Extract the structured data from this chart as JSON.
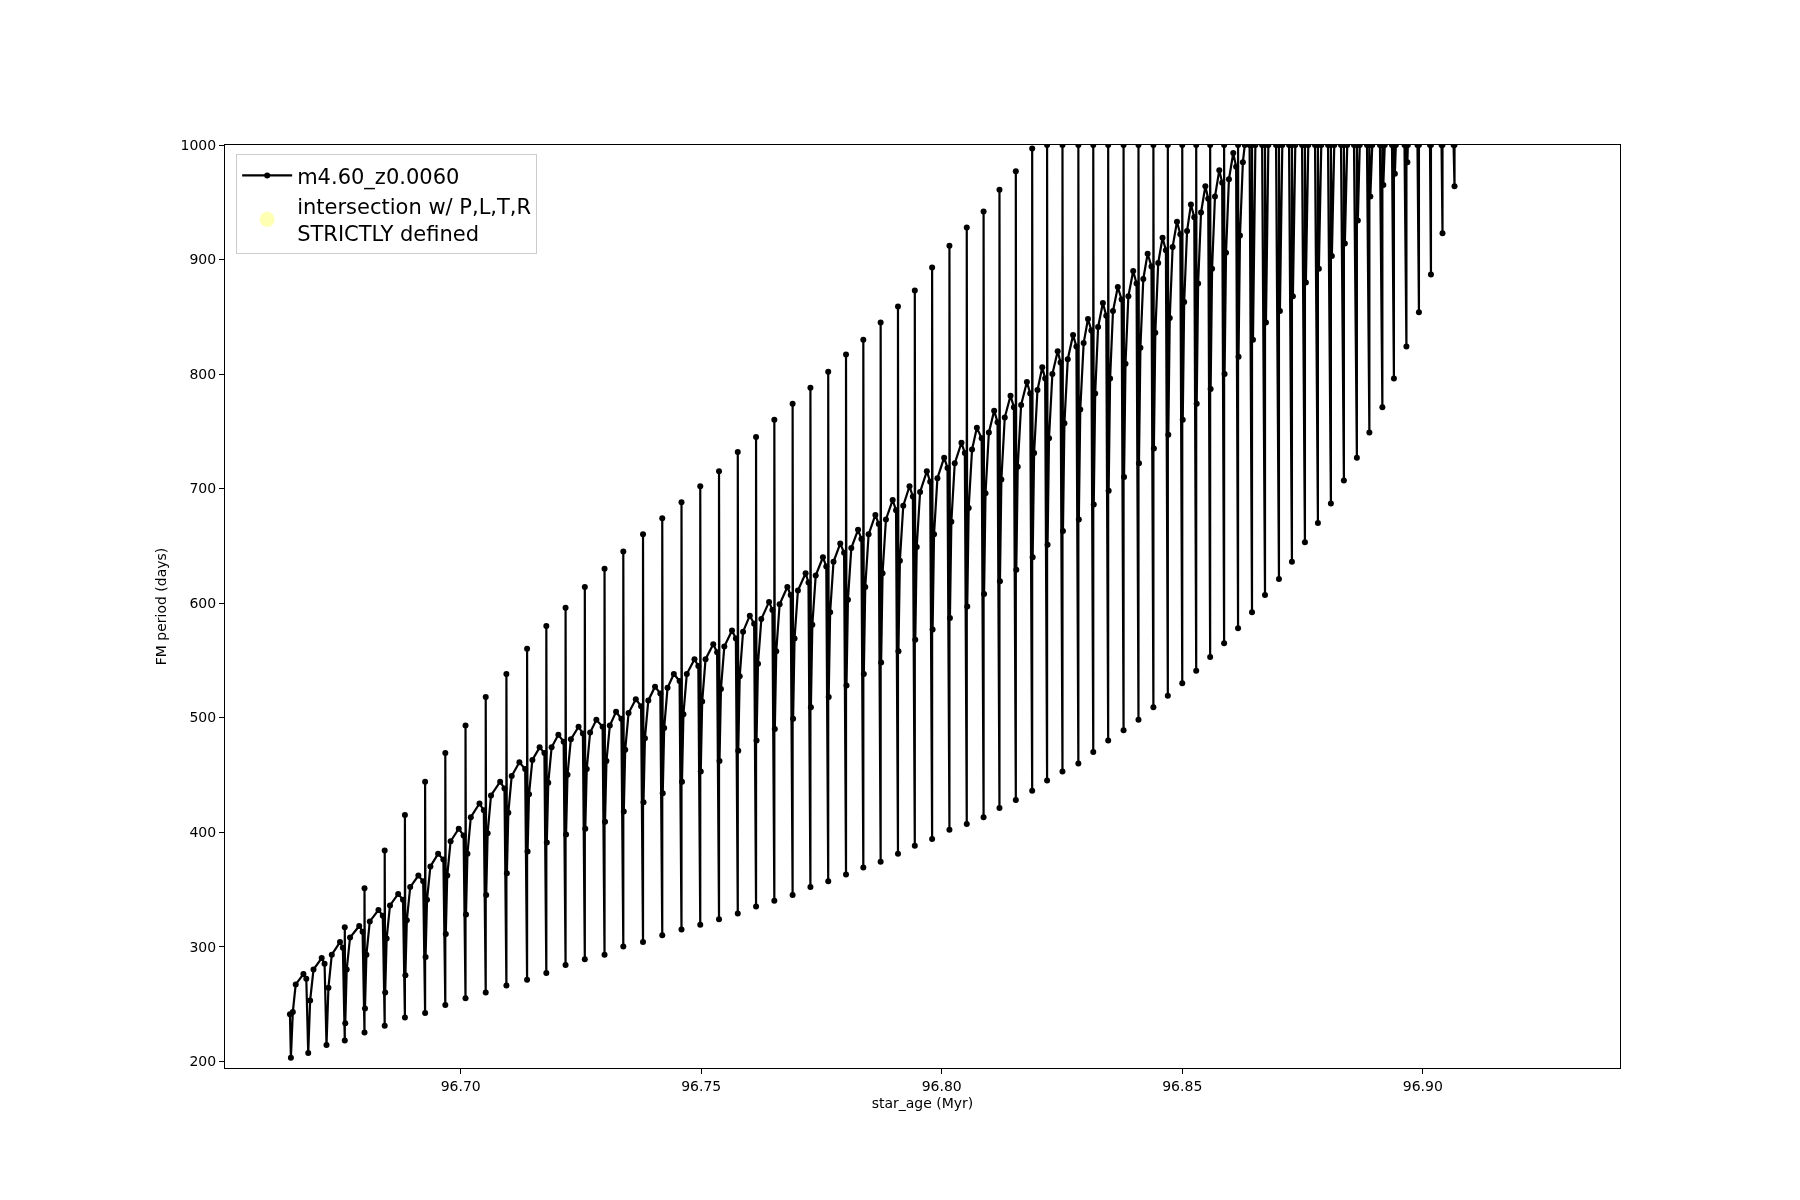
{
  "chart_data": {
    "type": "line",
    "xlabel": "star_age (Myr)",
    "ylabel": "FM period (days)",
    "xlim": [
      96.651,
      96.941
    ],
    "ylim": [
      194,
      1000
    ],
    "xticks": [
      {
        "value": 96.7,
        "label": "96.70"
      },
      {
        "value": 96.75,
        "label": "96.75"
      },
      {
        "value": 96.8,
        "label": "96.80"
      },
      {
        "value": 96.85,
        "label": "96.85"
      },
      {
        "value": 96.9,
        "label": "96.90"
      }
    ],
    "yticks": [
      200,
      300,
      400,
      500,
      600,
      700,
      800,
      900,
      1000
    ],
    "grid": false,
    "legend": "top left",
    "marker": "circle",
    "line_style": "solid",
    "series": [
      {
        "name": "m4.60_z0.0060",
        "color": "#000000",
        "x": [
          96.6645,
          96.6647,
          96.6651,
          96.6657,
          96.6673,
          96.6679,
          96.6683,
          96.6687,
          96.6694,
          96.6711,
          96.6717,
          96.6721,
          96.6725,
          96.6732,
          96.6749,
          96.6755,
          96.6759,
          96.6759,
          96.676,
          96.6763,
          96.677,
          96.6789,
          96.6796,
          96.68,
          96.68,
          96.6801,
          96.6804,
          96.6811,
          96.6829,
          96.6838,
          96.6842,
          96.6842,
          96.6843,
          96.6846,
          96.6853,
          96.687,
          96.688,
          96.6884,
          96.6884,
          96.6885,
          96.6888,
          96.6895,
          96.6912,
          96.6922,
          96.6926,
          96.6926,
          96.6927,
          96.693,
          96.6937,
          96.6953,
          96.6964,
          96.6968,
          96.6968,
          96.6969,
          96.6972,
          96.6979,
          96.6996,
          96.7006,
          96.701,
          96.701,
          96.7011,
          96.7014,
          96.7021,
          96.7039,
          96.7048,
          96.7052,
          96.7052,
          96.7053,
          96.7056,
          96.7063,
          96.7082,
          96.7091,
          96.7095,
          96.7095,
          96.7096,
          96.7099,
          96.7106,
          96.7122,
          96.7134,
          96.7138,
          96.7138,
          96.7139,
          96.7142,
          96.7149,
          96.7164,
          96.7174,
          96.7178,
          96.7178,
          96.7179,
          96.7182,
          96.7189,
          96.7203,
          96.7214,
          96.7218,
          96.7218,
          96.7219,
          96.7222,
          96.7229,
          96.7245,
          96.7254,
          96.7258,
          96.7258,
          96.7259,
          96.7262,
          96.7269,
          96.7282,
          96.7295,
          96.7299,
          96.7299,
          96.73,
          96.7303,
          96.731,
          96.7323,
          96.7334,
          96.7338,
          96.7338,
          96.7339,
          96.7342,
          96.7349,
          96.7364,
          96.7375,
          96.7379,
          96.7379,
          96.738,
          96.7383,
          96.739,
          96.7404,
          96.7415,
          96.7419,
          96.7419,
          96.742,
          96.7423,
          96.743,
          96.7443,
          96.7455,
          96.7459,
          96.7459,
          96.746,
          96.7463,
          96.747,
          96.7486,
          96.7494,
          96.7498,
          96.7498,
          96.7499,
          96.7502,
          96.7509,
          96.7525,
          96.7533,
          96.7537,
          96.7537,
          96.7538,
          96.7541,
          96.7548,
          96.7564,
          96.7572,
          96.7576,
          96.7576,
          96.7577,
          96.758,
          96.7587,
          96.7601,
          96.761,
          96.7614,
          96.7614,
          96.7615,
          96.7618,
          96.7625,
          96.7641,
          96.7648,
          96.7652,
          96.7652,
          96.7653,
          96.7656,
          96.7663,
          96.7679,
          96.7686,
          96.769,
          96.769,
          96.7691,
          96.7694,
          96.7701,
          96.7717,
          96.7723,
          96.7727,
          96.7727,
          96.7728,
          96.7731,
          96.7738,
          96.7753,
          96.776,
          96.7764,
          96.7764,
          96.7765,
          96.7768,
          96.7775,
          96.7789,
          96.7797,
          96.7801,
          96.7801,
          96.7802,
          96.7805,
          96.7812,
          96.7826,
          96.7833,
          96.7837,
          96.7837,
          96.7838,
          96.7841,
          96.7848,
          96.7862,
          96.7869,
          96.7873,
          96.7873,
          96.7874,
          96.7877,
          96.7884,
          96.7898,
          96.7905,
          96.7909,
          96.7909,
          96.791,
          96.7913,
          96.792,
          96.7933,
          96.794,
          96.7944,
          96.7944,
          96.7945,
          96.7948,
          96.7955,
          96.7969,
          96.7976,
          96.798,
          96.798,
          96.7981,
          96.7984,
          96.7991,
          96.8005,
          96.8012,
          96.8016,
          96.8016,
          96.8017,
          96.802,
          96.8027,
          96.8041,
          96.8048,
          96.8052,
          96.8052,
          96.8053,
          96.8056,
          96.8063,
          96.8073,
          96.8083,
          96.8087,
          96.8087,
          96.8088,
          96.8091,
          96.8098,
          96.8109,
          96.8116,
          96.812,
          96.812,
          96.8121,
          96.8124,
          96.8131,
          96.8143,
          96.815,
          96.8154,
          96.8154,
          96.8155,
          96.8158,
          96.8165,
          96.8177,
          96.8184,
          96.8188,
          96.8188,
          96.8189,
          96.8192,
          96.8199,
          96.8209,
          96.8215,
          96.8219,
          96.8219,
          96.822,
          96.8223,
          96.823,
          96.8241,
          96.8247,
          96.8251,
          96.8251,
          96.8252,
          96.8255,
          96.8262,
          96.8273,
          96.828,
          96.8284,
          96.8284,
          96.8285,
          96.8288,
          96.8295,
          96.8304,
          96.8311,
          96.8315,
          96.8315,
          96.8316,
          96.8319,
          96.8325,
          96.8335,
          96.8342,
          96.8346,
          96.8346,
          96.8347,
          96.835,
          96.8356,
          96.8366,
          96.8374,
          96.8378,
          96.8378,
          96.8379,
          96.8382,
          96.8388,
          96.8398,
          96.8405,
          96.8409,
          96.8409,
          96.841,
          96.8413,
          96.8419,
          96.8428,
          96.8436,
          96.844,
          96.844,
          96.8441,
          96.8444,
          96.845,
          96.8459,
          96.8466,
          96.847,
          96.847,
          96.8471,
          96.8474,
          96.848,
          96.8489,
          96.8496,
          96.85,
          96.85,
          96.8501,
          96.8504,
          96.851,
          96.8518,
          96.8525,
          96.8529,
          96.8529,
          96.853,
          96.8533,
          96.8539,
          96.8548,
          96.8554,
          96.8558,
          96.8558,
          96.8559,
          96.8562,
          96.8568,
          96.8577,
          96.8583,
          96.8587,
          96.8587,
          96.8588,
          96.8591,
          96.8597,
          96.8606,
          96.8612,
          96.8616,
          96.8616,
          96.8617,
          96.862,
          96.8626,
          96.863,
          null,
          96.864,
          96.8645,
          96.8645,
          96.8647,
          96.8652,
          null,
          96.8666,
          96.8672,
          96.8672,
          96.8674,
          96.8679,
          null,
          96.8695,
          96.8701,
          96.8701,
          96.8703,
          96.8708,
          null,
          96.8722,
          96.8728,
          96.8728,
          96.873,
          96.8735,
          null,
          96.8749,
          96.8755,
          96.8755,
          96.8757,
          96.8762,
          null,
          96.8776,
          96.8782,
          96.8782,
          96.8784,
          96.8789,
          null,
          96.8803,
          96.8809,
          96.8809,
          96.8811,
          96.8816,
          null,
          96.883,
          96.8836,
          96.8836,
          96.8838,
          96.8843,
          null,
          96.8857,
          96.8863,
          96.8863,
          96.8865,
          96.8869,
          null,
          96.8884,
          96.8889,
          96.8889,
          96.8891,
          96.8895,
          null,
          96.8911,
          96.8916,
          96.8916,
          96.8918,
          96.8921,
          null,
          96.8936,
          96.894,
          96.894,
          96.8942,
          96.8944,
          null,
          96.8962,
          96.8966,
          96.8966,
          96.8968,
          96.8969,
          null,
          96.8989,
          96.8992,
          96.8992,
          null,
          96.9015,
          96.9017,
          96.9017,
          null,
          96.9039,
          96.9041,
          96.9041,
          null,
          96.9064,
          96.9066,
          96.9066
        ],
        "values": [
          241,
          203,
          243,
          267,
          276,
          272,
          207,
          253,
          280,
          290,
          285,
          214,
          264,
          293,
          304,
          299,
          218,
          317,
          233,
          280,
          308,
          318,
          313,
          225,
          351,
          246,
          293,
          322,
          332,
          327,
          231,
          384,
          260,
          307,
          336,
          346,
          341,
          238,
          415,
          275,
          323,
          352,
          362,
          357,
          242,
          444,
          291,
          341,
          370,
          381,
          376,
          249,
          469,
          311,
          362,
          392,
          403,
          397,
          255,
          493,
          328,
          381,
          413,
          425,
          419,
          260,
          518,
          345,
          399,
          432,
          444,
          438,
          266,
          538,
          364,
          417,
          449,
          461,
          455,
          271,
          560,
          383,
          433,
          463,
          474,
          469,
          277,
          580,
          391,
          443,
          474,
          485,
          479,
          284,
          596,
          398,
          450,
          481,
          492,
          486,
          289,
          614,
          403,
          455,
          487,
          498,
          492,
          293,
          630,
          409,
          462,
          493,
          505,
          499,
          300,
          645,
          418,
          472,
          504,
          516,
          510,
          304,
          660,
          426,
          482,
          515,
          527,
          521,
          310,
          674,
          434,
          491,
          526,
          538,
          532,
          315,
          688,
          444,
          503,
          538,
          551,
          545,
          319,
          702,
          453,
          514,
          551,
          564,
          557,
          324,
          715,
          462,
          525,
          562,
          576,
          569,
          329,
          732,
          471,
          536,
          575,
          589,
          582,
          335,
          745,
          480,
          547,
          586,
          601,
          594,
          340,
          760,
          490,
          558,
          599,
          614,
          607,
          345,
          774,
          499,
          569,
          611,
          626,
          618,
          352,
          788,
          509,
          581,
          624,
          640,
          632,
          357,
          802,
          518,
          592,
          636,
          652,
          644,
          363,
          817,
          528,
          603,
          648,
          664,
          656,
          369,
          830,
          538,
          614,
          660,
          677,
          669,
          374,
          845,
          548,
          626,
          673,
          690,
          681,
          381,
          859,
          558,
          637,
          685,
          702,
          693,
          388,
          873,
          568,
          649,
          697,
          715,
          706,
          394,
          893,
          577,
          660,
          709,
          727,
          718,
          402,
          912,
          587,
          671,
          722,
          740,
          731,
          407,
          928,
          597,
          683,
          734,
          753,
          744,
          413,
          942,
          608,
          696,
          749,
          768,
          758,
          421,
          961,
          619,
          708,
          762,
          781,
          771,
          428,
          977,
          629,
          719,
          773,
          793,
          783,
          436,
          997,
          640,
          731,
          786,
          806,
          796,
          445,
          1000,
          651,
          744,
          800,
          820,
          810,
          453,
          1000,
          663,
          757,
          813,
          834,
          824,
          460,
          1000,
          673,
          769,
          827,
          848,
          838,
          470,
          1000,
          686,
          783,
          841,
          862,
          851,
          480,
          1000,
          698,
          796,
          855,
          876,
          865,
          489,
          1000,
          710,
          809,
          868,
          890,
          879,
          498,
          1000,
          722,
          823,
          883,
          905,
          894,
          509,
          1000,
          735,
          836,
          897,
          919,
          908,
          519,
          1000,
          747,
          849,
          911,
          933,
          922,
          530,
          1000,
          760,
          863,
          925,
          948,
          937,
          541,
          1000,
          774,
          879,
          941,
          964,
          953,
          553,
          1000,
          787,
          892,
          955,
          978,
          967,
          565,
          1000,
          800,
          906,
          970,
          993,
          981,
          578,
          1000,
          815,
          921,
          985,
          1000,
          null,
          1000,
          592,
          1000,
          830,
          1000,
          null,
          1000,
          607,
          1000,
          845,
          1000,
          null,
          1000,
          621,
          1000,
          855,
          1000,
          null,
          1000,
          636,
          1000,
          868,
          1000,
          null,
          1000,
          653,
          1000,
          880,
          1000,
          null,
          1000,
          670,
          1000,
          892,
          1000,
          null,
          1000,
          687,
          1000,
          903,
          1000,
          null,
          1000,
          707,
          1000,
          914,
          1000,
          null,
          1000,
          727,
          1000,
          934,
          1000,
          null,
          1000,
          749,
          1000,
          955,
          1000,
          null,
          1000,
          771,
          1000,
          965,
          1000,
          null,
          1000,
          796,
          1000,
          975,
          1000,
          null,
          1000,
          824,
          1000,
          985,
          1000,
          null,
          1000,
          854,
          1000,
          null,
          1000,
          887,
          1000,
          null,
          1000,
          923,
          1000,
          null,
          1000,
          964,
          1000
        ]
      },
      {
        "name": "intersection w/ P,L,T,R\nSTRICTLY defined",
        "type": "scatter",
        "color": "#ffffb3"
      }
    ]
  }
}
